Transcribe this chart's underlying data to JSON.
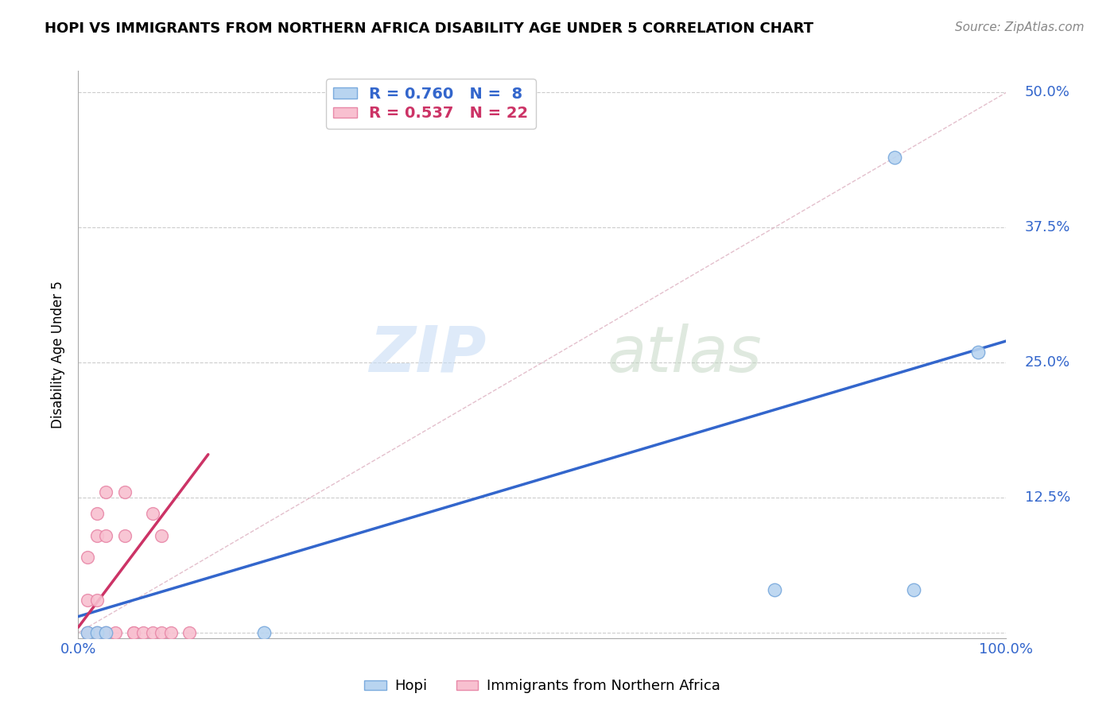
{
  "title": "HOPI VS IMMIGRANTS FROM NORTHERN AFRICA DISABILITY AGE UNDER 5 CORRELATION CHART",
  "source": "Source: ZipAtlas.com",
  "ylabel": "Disability Age Under 5",
  "xlim": [
    0.0,
    1.0
  ],
  "ylim": [
    -0.005,
    0.52
  ],
  "yticks": [
    0.0,
    0.125,
    0.25,
    0.375,
    0.5
  ],
  "ytick_labels": [
    "",
    "12.5%",
    "25.0%",
    "37.5%",
    "50.0%"
  ],
  "xticks": [
    0.0,
    0.25,
    0.5,
    0.75,
    1.0
  ],
  "xtick_labels": [
    "0.0%",
    "",
    "",
    "",
    "100.0%"
  ],
  "hopi_color": "#b8d4f0",
  "hopi_edge_color": "#7aaadd",
  "immigrants_color": "#f8c0d0",
  "immigrants_edge_color": "#e888a8",
  "blue_line_color": "#3366cc",
  "pink_line_color": "#cc3366",
  "diag_line_color": "#ddb0c0",
  "hgrid_color": "#cccccc",
  "legend_r_blue": "R = 0.760",
  "legend_n_blue": "N =  8",
  "legend_r_pink": "R = 0.537",
  "legend_n_pink": "N = 22",
  "hopi_x": [
    0.01,
    0.02,
    0.03,
    0.2,
    0.75,
    0.9,
    0.97
  ],
  "hopi_y": [
    0.0,
    0.0,
    0.0,
    0.0,
    0.04,
    0.04,
    0.26
  ],
  "immigrants_x": [
    0.01,
    0.01,
    0.01,
    0.02,
    0.02,
    0.02,
    0.02,
    0.03,
    0.03,
    0.03,
    0.04,
    0.05,
    0.05,
    0.06,
    0.06,
    0.07,
    0.08,
    0.08,
    0.09,
    0.09,
    0.1,
    0.12
  ],
  "immigrants_y": [
    0.0,
    0.03,
    0.07,
    0.0,
    0.03,
    0.09,
    0.11,
    0.0,
    0.09,
    0.13,
    0.0,
    0.09,
    0.13,
    0.0,
    0.0,
    0.0,
    0.0,
    0.11,
    0.0,
    0.09,
    0.0,
    0.0
  ],
  "hopi_outlier_x": [
    0.88
  ],
  "hopi_outlier_y": [
    0.44
  ],
  "blue_line_x": [
    0.0,
    1.0
  ],
  "blue_line_y": [
    0.015,
    0.27
  ],
  "pink_line_x": [
    0.0,
    0.14
  ],
  "pink_line_y": [
    0.005,
    0.165
  ]
}
